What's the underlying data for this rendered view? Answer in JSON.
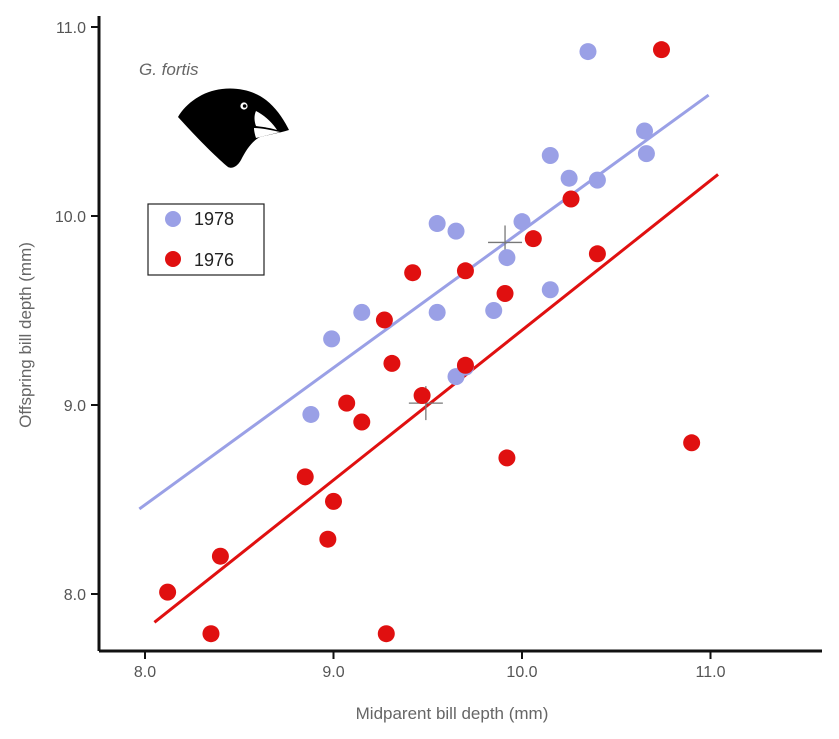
{
  "chart_data": {
    "type": "scatter",
    "annotation": "G. fortis",
    "xlabel": "Midparent bill depth (mm)",
    "ylabel": "Offspring bill depth (mm)",
    "xlim": [
      7.8,
      11.6
    ],
    "ylim": [
      7.7,
      11.05
    ],
    "x_ticks": [
      8.0,
      9.0,
      10.0,
      11.0
    ],
    "y_ticks": [
      8.0,
      9.0,
      10.0,
      11.0
    ],
    "x_tick_labels": [
      "8.0",
      "9.0",
      "10.0",
      "11.0"
    ],
    "y_tick_labels": [
      "8.0",
      "9.0",
      "10.0",
      "11.0"
    ],
    "grid": false,
    "legend_position": "top-left",
    "series": [
      {
        "name": "1978",
        "color": "#9aa0e6",
        "points": [
          [
            8.88,
            8.95
          ],
          [
            8.99,
            9.35
          ],
          [
            9.15,
            9.49
          ],
          [
            9.55,
            9.49
          ],
          [
            9.55,
            9.96
          ],
          [
            9.65,
            9.92
          ],
          [
            9.65,
            9.15
          ],
          [
            9.7,
            9.2
          ],
          [
            9.85,
            9.5
          ],
          [
            9.92,
            9.78
          ],
          [
            10.0,
            9.97
          ],
          [
            10.15,
            10.32
          ],
          [
            10.15,
            9.61
          ],
          [
            10.25,
            10.2
          ],
          [
            10.35,
            10.87
          ],
          [
            10.4,
            10.19
          ],
          [
            10.65,
            10.45
          ],
          [
            10.66,
            10.33
          ]
        ],
        "fit": [
          [
            7.97,
            8.45
          ],
          [
            10.99,
            10.64
          ]
        ]
      },
      {
        "name": "1976",
        "color": "#e01010",
        "points": [
          [
            8.12,
            8.01
          ],
          [
            8.35,
            7.79
          ],
          [
            8.4,
            8.2
          ],
          [
            8.85,
            8.62
          ],
          [
            8.97,
            8.29
          ],
          [
            9.0,
            8.49
          ],
          [
            9.07,
            9.01
          ],
          [
            9.15,
            8.91
          ],
          [
            9.27,
            9.45
          ],
          [
            9.28,
            7.79
          ],
          [
            9.31,
            9.22
          ],
          [
            9.42,
            9.7
          ],
          [
            9.47,
            9.05
          ],
          [
            9.7,
            9.21
          ],
          [
            9.7,
            9.71
          ],
          [
            9.91,
            9.59
          ],
          [
            9.92,
            8.72
          ],
          [
            10.06,
            9.88
          ],
          [
            10.26,
            10.09
          ],
          [
            10.4,
            9.8
          ],
          [
            10.74,
            10.88
          ],
          [
            10.9,
            8.8
          ]
        ],
        "fit": [
          [
            8.05,
            7.85
          ],
          [
            11.04,
            10.22
          ]
        ]
      }
    ],
    "mean_markers": [
      [
        9.49,
        9.01
      ],
      [
        9.91,
        9.86
      ]
    ]
  }
}
